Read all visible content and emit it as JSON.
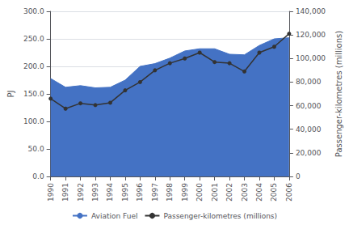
{
  "chart_data": {
    "type": "area_line",
    "x": [
      1990,
      1991,
      1992,
      1993,
      1994,
      1995,
      1996,
      1997,
      1998,
      1999,
      2000,
      2001,
      2002,
      2003,
      2004,
      2005,
      2006
    ],
    "xlim": [
      1990,
      2006
    ],
    "xticks": [
      1990,
      1991,
      1992,
      1993,
      1994,
      1995,
      1996,
      1997,
      1998,
      1999,
      2000,
      2001,
      2002,
      2003,
      2004,
      2005,
      2006
    ],
    "ylabel": "PJ",
    "y2label": "Passenger-kilometres (millions)",
    "ylim": [
      0,
      300
    ],
    "yticks": [
      {
        "value": 0,
        "label": "0.0"
      },
      {
        "value": 50,
        "label": "50.0"
      },
      {
        "value": 100,
        "label": "100.0"
      },
      {
        "value": 150,
        "label": "150.0"
      },
      {
        "value": 200,
        "label": "200.0"
      },
      {
        "value": 250,
        "label": "250.0"
      },
      {
        "value": 300,
        "label": "300.0"
      }
    ],
    "y2lim": [
      0,
      140000
    ],
    "y2ticks": [
      0,
      {
        "value": 20000,
        "label": "20,000"
      },
      {
        "value": 40000,
        "label": "40,000"
      },
      {
        "value": 60000,
        "label": "60,000"
      },
      {
        "value": 80000,
        "label": "80,000"
      },
      {
        "value": 100000,
        "label": "100,000"
      },
      {
        "value": 120000,
        "label": "120,000"
      },
      {
        "value": 140000,
        "label": "140,000"
      }
    ],
    "grid": true,
    "legend": "bottom",
    "series": [
      {
        "name": "Aviation Fuel",
        "type": "area",
        "color": "#4472C4",
        "values": [
          178,
          162,
          165,
          161,
          162,
          175,
          200,
          205,
          215,
          228,
          232,
          232,
          222,
          221,
          238,
          250,
          252
        ]
      },
      {
        "name": "Passenger-kilometres (millions)",
        "type": "line",
        "axis": "y2",
        "color": "#333333",
        "marker": "circle",
        "values": [
          66000,
          57500,
          62000,
          60500,
          62500,
          73000,
          80000,
          90000,
          96000,
          100000,
          105000,
          97000,
          96000,
          89000,
          105000,
          110000,
          121000
        ]
      }
    ]
  }
}
